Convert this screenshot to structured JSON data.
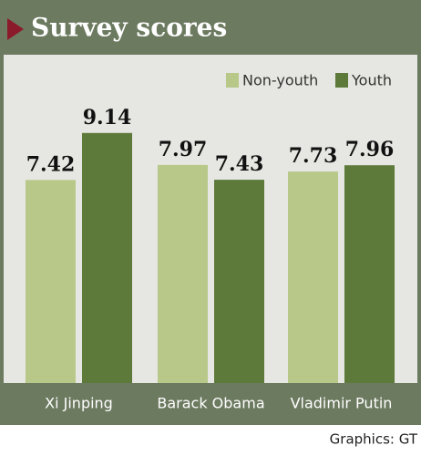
{
  "chart_data": {
    "type": "bar",
    "title": "Survey scores",
    "categories": [
      "Xi Jinping",
      "Barack Obama",
      "Vladimir Putin"
    ],
    "series": [
      {
        "name": "Non-youth",
        "color": "#b8c888",
        "values": [
          7.42,
          7.97,
          7.73
        ]
      },
      {
        "name": "Youth",
        "color": "#5d7a3a",
        "values": [
          9.14,
          7.43,
          7.96
        ]
      }
    ],
    "credit": "Graphics: GT"
  }
}
